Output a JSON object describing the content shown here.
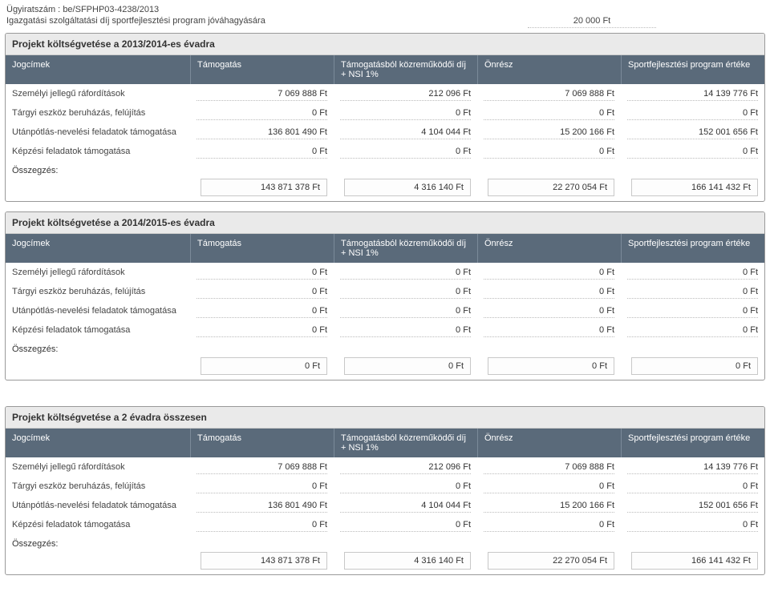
{
  "header": {
    "case_number_label": "Ügyiratszám :",
    "case_number": "be/SFPHP03-4238/2013",
    "fee_label": "Igazgatási szolgáltatási díj sportfejlesztési program jóváhagyására",
    "fee_value": "20 000 Ft"
  },
  "columns": {
    "c0": "Jogcímek",
    "c1": "Támogatás",
    "c2": "Támogatásból közreműködői díj + NSI 1%",
    "c3": "Önrész",
    "c4": "Sportfejlesztési program értéke"
  },
  "row_labels": {
    "r0": "Személyi jellegű ráfordítások",
    "r1": "Tárgyi eszköz beruházás, felújítás",
    "r2": "Utánpótlás-nevelési feladatok támogatása",
    "r3": "Képzési feladatok támogatása",
    "sum": "Összegzés:"
  },
  "sections": [
    {
      "title": "Projekt költségvetése a 2013/2014-es évadra",
      "rows": [
        [
          "7 069 888 Ft",
          "212 096 Ft",
          "7 069 888 Ft",
          "14 139 776 Ft"
        ],
        [
          "0 Ft",
          "0 Ft",
          "0 Ft",
          "0 Ft"
        ],
        [
          "136 801 490 Ft",
          "4 104 044 Ft",
          "15 200 166 Ft",
          "152 001 656 Ft"
        ],
        [
          "0 Ft",
          "0 Ft",
          "0 Ft",
          "0 Ft"
        ]
      ],
      "sum": [
        "143 871 378 Ft",
        "4 316 140 Ft",
        "22 270 054 Ft",
        "166 141 432 Ft"
      ]
    },
    {
      "title": "Projekt költségvetése a 2014/2015-es évadra",
      "rows": [
        [
          "0 Ft",
          "0 Ft",
          "0 Ft",
          "0 Ft"
        ],
        [
          "0 Ft",
          "0 Ft",
          "0 Ft",
          "0 Ft"
        ],
        [
          "0 Ft",
          "0 Ft",
          "0 Ft",
          "0 Ft"
        ],
        [
          "0 Ft",
          "0 Ft",
          "0 Ft",
          "0 Ft"
        ]
      ],
      "sum": [
        "0 Ft",
        "0 Ft",
        "0 Ft",
        "0 Ft"
      ]
    },
    {
      "title": "Projekt költségvetése a 2 évadra összesen",
      "rows": [
        [
          "7 069 888 Ft",
          "212 096 Ft",
          "7 069 888 Ft",
          "14 139 776 Ft"
        ],
        [
          "0 Ft",
          "0 Ft",
          "0 Ft",
          "0 Ft"
        ],
        [
          "136 801 490 Ft",
          "4 104 044 Ft",
          "15 200 166 Ft",
          "152 001 656 Ft"
        ],
        [
          "0 Ft",
          "0 Ft",
          "0 Ft",
          "0 Ft"
        ]
      ],
      "sum": [
        "143 871 378 Ft",
        "4 316 140 Ft",
        "22 270 054 Ft",
        "166 141 432 Ft"
      ]
    }
  ],
  "colors": {
    "header_bg": "#5a6a7a",
    "header_text": "#ffffff",
    "section_title_bg": "#eaeaea",
    "border": "#999999",
    "dotted": "#bbbbbb",
    "text": "#3b3b3b"
  }
}
